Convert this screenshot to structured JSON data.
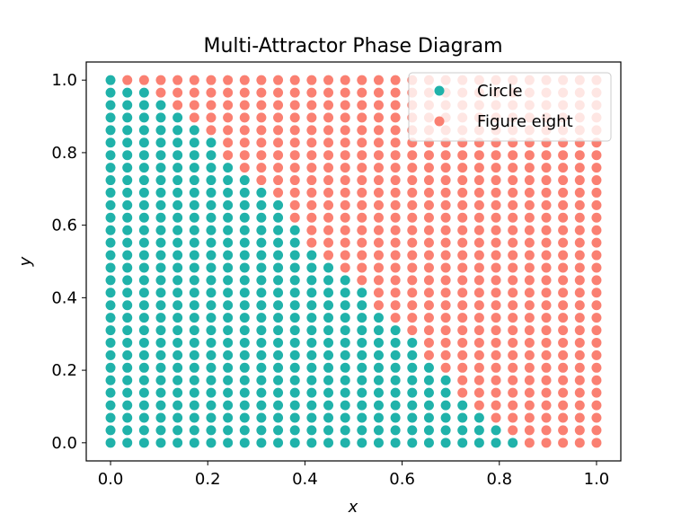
{
  "chart_data": {
    "type": "scatter",
    "title": "Multi-Attractor Phase Diagram",
    "xlabel": "x",
    "ylabel": "y",
    "xlim": [
      -0.05,
      1.05
    ],
    "ylim": [
      -0.05,
      1.05
    ],
    "xticks": [
      "0.0",
      "0.2",
      "0.4",
      "0.6",
      "0.8",
      "1.0"
    ],
    "yticks": [
      "0.0",
      "0.2",
      "0.4",
      "0.6",
      "0.8",
      "1.0"
    ],
    "grid": false,
    "legend_position": "top-right",
    "grid_resolution": 30,
    "x_values": [
      0.0,
      0.0345,
      0.069,
      0.1034,
      0.1379,
      0.1724,
      0.2069,
      0.2414,
      0.2759,
      0.3103,
      0.3448,
      0.3793,
      0.4138,
      0.4483,
      0.4828,
      0.5172,
      0.5517,
      0.5862,
      0.6207,
      0.6552,
      0.6897,
      0.7241,
      0.7586,
      0.7931,
      0.8276,
      0.8621,
      0.8966,
      0.931,
      0.9655,
      1.0
    ],
    "y_values": [
      0.0,
      0.0345,
      0.069,
      0.1034,
      0.1379,
      0.1724,
      0.2069,
      0.2414,
      0.2759,
      0.3103,
      0.3448,
      0.3793,
      0.4138,
      0.4483,
      0.4828,
      0.5172,
      0.5517,
      0.5862,
      0.6207,
      0.6552,
      0.6897,
      0.7241,
      0.7586,
      0.7931,
      0.8276,
      0.8621,
      0.8966,
      0.931,
      0.9655,
      1.0
    ],
    "boundary": {
      "description_of_rule": "point is Circle when x <= boundary_x for its y",
      "y": [
        0.0,
        0.0345,
        0.069,
        0.1034,
        0.1379,
        0.1724,
        0.2069,
        0.2414,
        0.2759,
        0.3103,
        0.3448,
        0.3793,
        0.4138,
        0.4483,
        0.4828,
        0.5172,
        0.5517,
        0.5862,
        0.6207,
        0.6552,
        0.6897,
        0.7241,
        0.7586,
        0.7931,
        0.8276,
        0.8621,
        0.8966,
        0.931,
        0.9655,
        1.0
      ],
      "boundary_x": [
        0.8276,
        0.7931,
        0.7586,
        0.7241,
        0.6897,
        0.6897,
        0.6552,
        0.6207,
        0.6207,
        0.5862,
        0.5517,
        0.5172,
        0.5172,
        0.4828,
        0.4483,
        0.4138,
        0.3793,
        0.3793,
        0.3448,
        0.3448,
        0.3103,
        0.2759,
        0.2414,
        0.2069,
        0.2069,
        0.1724,
        0.1379,
        0.1034,
        0.069,
        0.0
      ]
    },
    "series": [
      {
        "name": "Circle",
        "color": "#20b2aa"
      },
      {
        "name": "Figure eight",
        "color": "#fa8072"
      }
    ]
  }
}
